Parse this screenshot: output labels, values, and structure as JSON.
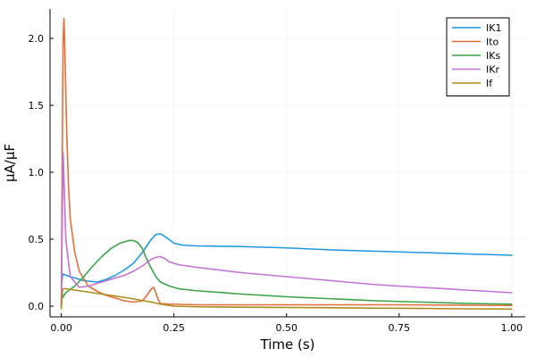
{
  "chart_data": {
    "type": "line",
    "title": "",
    "xlabel": "Time (s)",
    "ylabel": "μA/μF",
    "xlim": [
      -0.025,
      1.03
    ],
    "ylim": [
      -0.08,
      2.22
    ],
    "xticks": [
      0.0,
      0.25,
      0.5,
      0.75,
      1.0
    ],
    "xtick_labels": [
      "0.00",
      "0.25",
      "0.50",
      "0.75",
      "1.00"
    ],
    "yticks": [
      0.0,
      0.5,
      1.0,
      1.5,
      2.0
    ],
    "ytick_labels": [
      "0.0",
      "0.5",
      "1.0",
      "1.5",
      "2.0"
    ],
    "grid": true,
    "legend_position": "top-right",
    "series": [
      {
        "name": "IK1",
        "color": "#1f98e0",
        "x": [
          0.0,
          0.003,
          0.02,
          0.05,
          0.08,
          0.1,
          0.12,
          0.14,
          0.16,
          0.18,
          0.2,
          0.21,
          0.22,
          0.23,
          0.25,
          0.27,
          0.3,
          0.4,
          0.5,
          0.6,
          0.7,
          0.8,
          0.9,
          1.0
        ],
        "y": [
          0.14,
          0.24,
          0.22,
          0.19,
          0.18,
          0.2,
          0.23,
          0.27,
          0.32,
          0.4,
          0.5,
          0.535,
          0.54,
          0.52,
          0.47,
          0.455,
          0.45,
          0.445,
          0.435,
          0.42,
          0.41,
          0.4,
          0.39,
          0.38
        ]
      },
      {
        "name": "Ito",
        "color": "#e1703d",
        "x": [
          0.0,
          0.002,
          0.004,
          0.006,
          0.008,
          0.012,
          0.016,
          0.02,
          0.03,
          0.04,
          0.06,
          0.08,
          0.1,
          0.12,
          0.14,
          0.16,
          0.18,
          0.19,
          0.2,
          0.205,
          0.21,
          0.215,
          0.22,
          0.24,
          0.3,
          0.5,
          0.75,
          1.0
        ],
        "y": [
          0.0,
          1.0,
          2.0,
          2.15,
          1.9,
          1.3,
          0.9,
          0.65,
          0.4,
          0.26,
          0.15,
          0.11,
          0.08,
          0.06,
          0.04,
          0.03,
          0.04,
          0.08,
          0.13,
          0.14,
          0.1,
          0.05,
          0.02,
          0.015,
          0.01,
          0.01,
          0.01,
          0.005
        ]
      },
      {
        "name": "IKs",
        "color": "#3ca14a",
        "x": [
          0.0,
          0.01,
          0.03,
          0.05,
          0.07,
          0.09,
          0.11,
          0.13,
          0.15,
          0.16,
          0.17,
          0.18,
          0.19,
          0.2,
          0.21,
          0.22,
          0.24,
          0.26,
          0.3,
          0.4,
          0.5,
          0.6,
          0.7,
          0.8,
          0.9,
          1.0
        ],
        "y": [
          0.05,
          0.1,
          0.15,
          0.22,
          0.3,
          0.37,
          0.43,
          0.47,
          0.49,
          0.49,
          0.475,
          0.43,
          0.35,
          0.28,
          0.22,
          0.18,
          0.15,
          0.13,
          0.115,
          0.09,
          0.07,
          0.055,
          0.04,
          0.03,
          0.02,
          0.015
        ]
      },
      {
        "name": "IKr",
        "color": "#c172d4",
        "x": [
          0.0,
          0.002,
          0.004,
          0.006,
          0.01,
          0.02,
          0.04,
          0.06,
          0.08,
          0.1,
          0.12,
          0.14,
          0.16,
          0.18,
          0.2,
          0.21,
          0.22,
          0.23,
          0.24,
          0.26,
          0.3,
          0.4,
          0.5,
          0.6,
          0.7,
          0.8,
          0.9,
          1.0
        ],
        "y": [
          0.0,
          0.6,
          1.15,
          0.95,
          0.5,
          0.22,
          0.14,
          0.15,
          0.17,
          0.19,
          0.21,
          0.23,
          0.26,
          0.3,
          0.35,
          0.365,
          0.37,
          0.355,
          0.33,
          0.31,
          0.29,
          0.25,
          0.22,
          0.19,
          0.16,
          0.14,
          0.12,
          0.1
        ]
      },
      {
        "name": "If",
        "color": "#ad8b1e",
        "x": [
          0.0,
          0.003,
          0.01,
          0.03,
          0.06,
          0.1,
          0.15,
          0.2,
          0.22,
          0.25,
          0.3,
          0.4,
          0.5,
          0.6,
          0.7,
          0.8,
          0.9,
          1.0
        ],
        "y": [
          -0.02,
          0.13,
          0.13,
          0.12,
          0.105,
          0.085,
          0.06,
          0.03,
          0.015,
          0.0,
          -0.005,
          -0.008,
          -0.01,
          -0.012,
          -0.015,
          -0.017,
          -0.02,
          -0.022
        ]
      }
    ]
  }
}
